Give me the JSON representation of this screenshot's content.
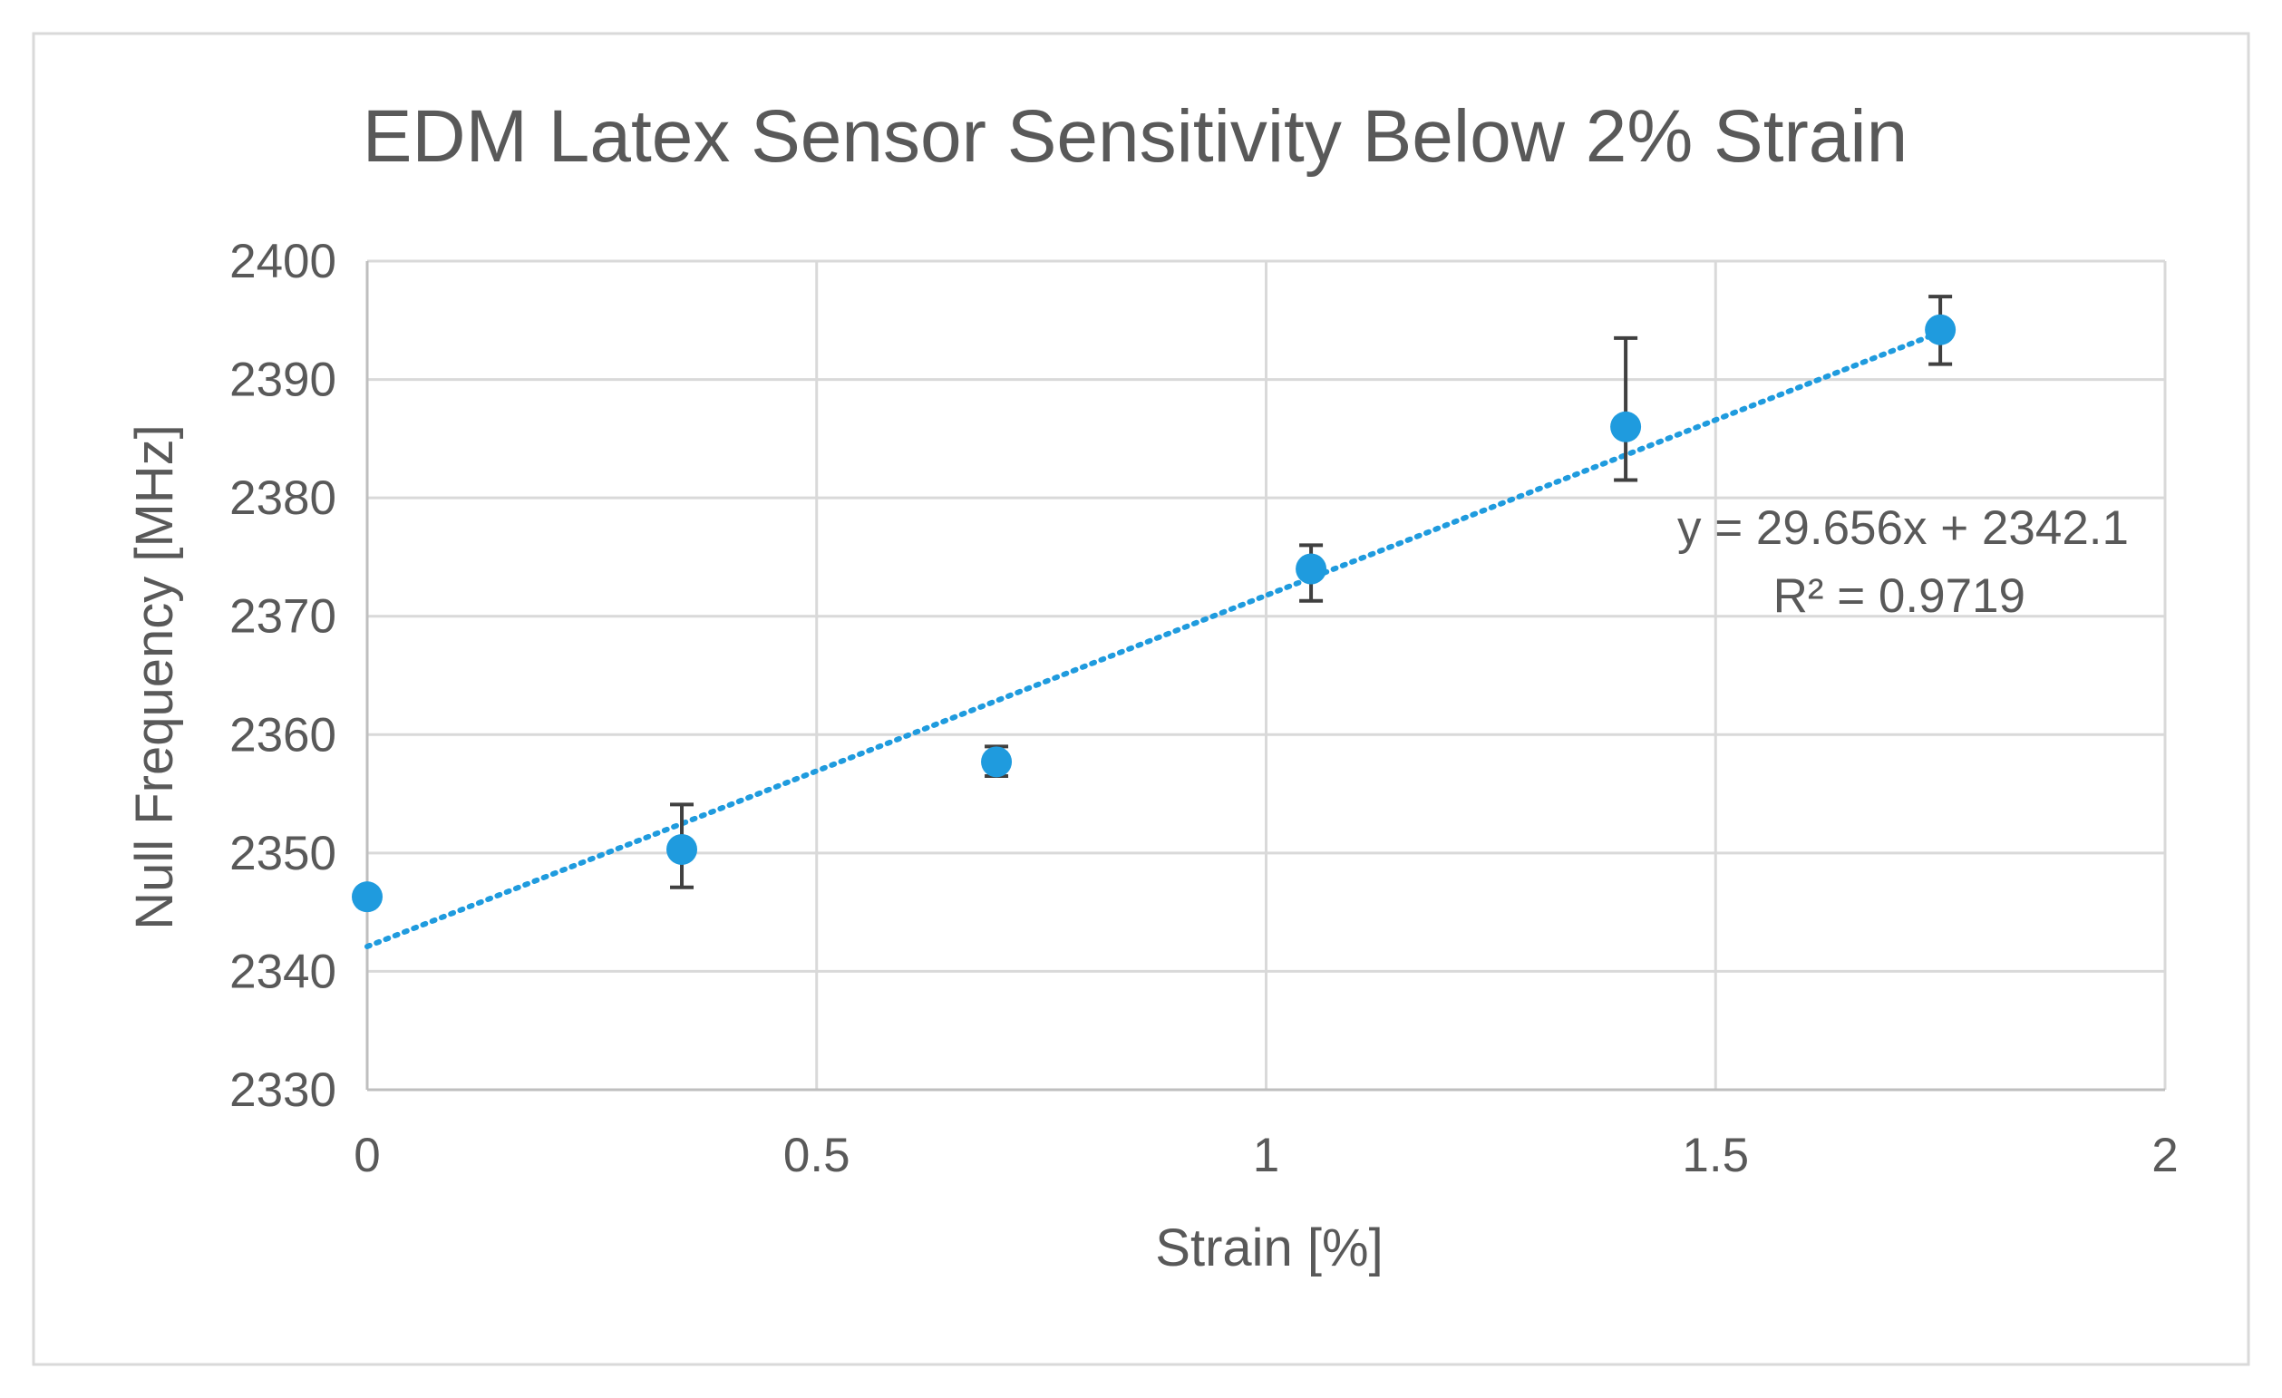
{
  "chart_data": {
    "type": "scatter",
    "title": "EDM Latex Sensor Sensitivity Below 2% Strain",
    "xlabel": "Strain [%]",
    "ylabel": "Null Frequency [MHz]",
    "xlim": [
      0,
      2
    ],
    "ylim": [
      2330,
      2400
    ],
    "x_ticks": [
      0,
      0.5,
      1,
      1.5,
      2
    ],
    "x_tick_labels": [
      "0",
      "0.5",
      "1",
      "1.5",
      "2"
    ],
    "y_ticks": [
      2330,
      2340,
      2350,
      2360,
      2370,
      2380,
      2390,
      2400
    ],
    "y_tick_labels": [
      "2330",
      "2340",
      "2350",
      "2360",
      "2370",
      "2380",
      "2390",
      "2400"
    ],
    "grid": true,
    "series": [
      {
        "name": "Null Frequency",
        "color": "#1F9BDE",
        "x": [
          0,
          0.35,
          0.7,
          1.05,
          1.4,
          1.75
        ],
        "y": [
          2346.3,
          2350.3,
          2357.7,
          2374.0,
          2386.0,
          2394.2
        ],
        "error_low": [
          2346.3,
          2347.1,
          2356.5,
          2371.3,
          2381.5,
          2391.3
        ],
        "error_high": [
          2346.3,
          2354.1,
          2359.0,
          2376.0,
          2393.5,
          2397.0
        ]
      }
    ],
    "trendline": {
      "type": "linear",
      "slope": 29.656,
      "intercept": 2342.1,
      "x_range": [
        0,
        1.75
      ],
      "color": "#1F9BDE",
      "style": "dotted"
    },
    "annotations": {
      "equation": "y = 29.656x + 2342.1",
      "r_squared": "R² = 0.9719"
    }
  }
}
